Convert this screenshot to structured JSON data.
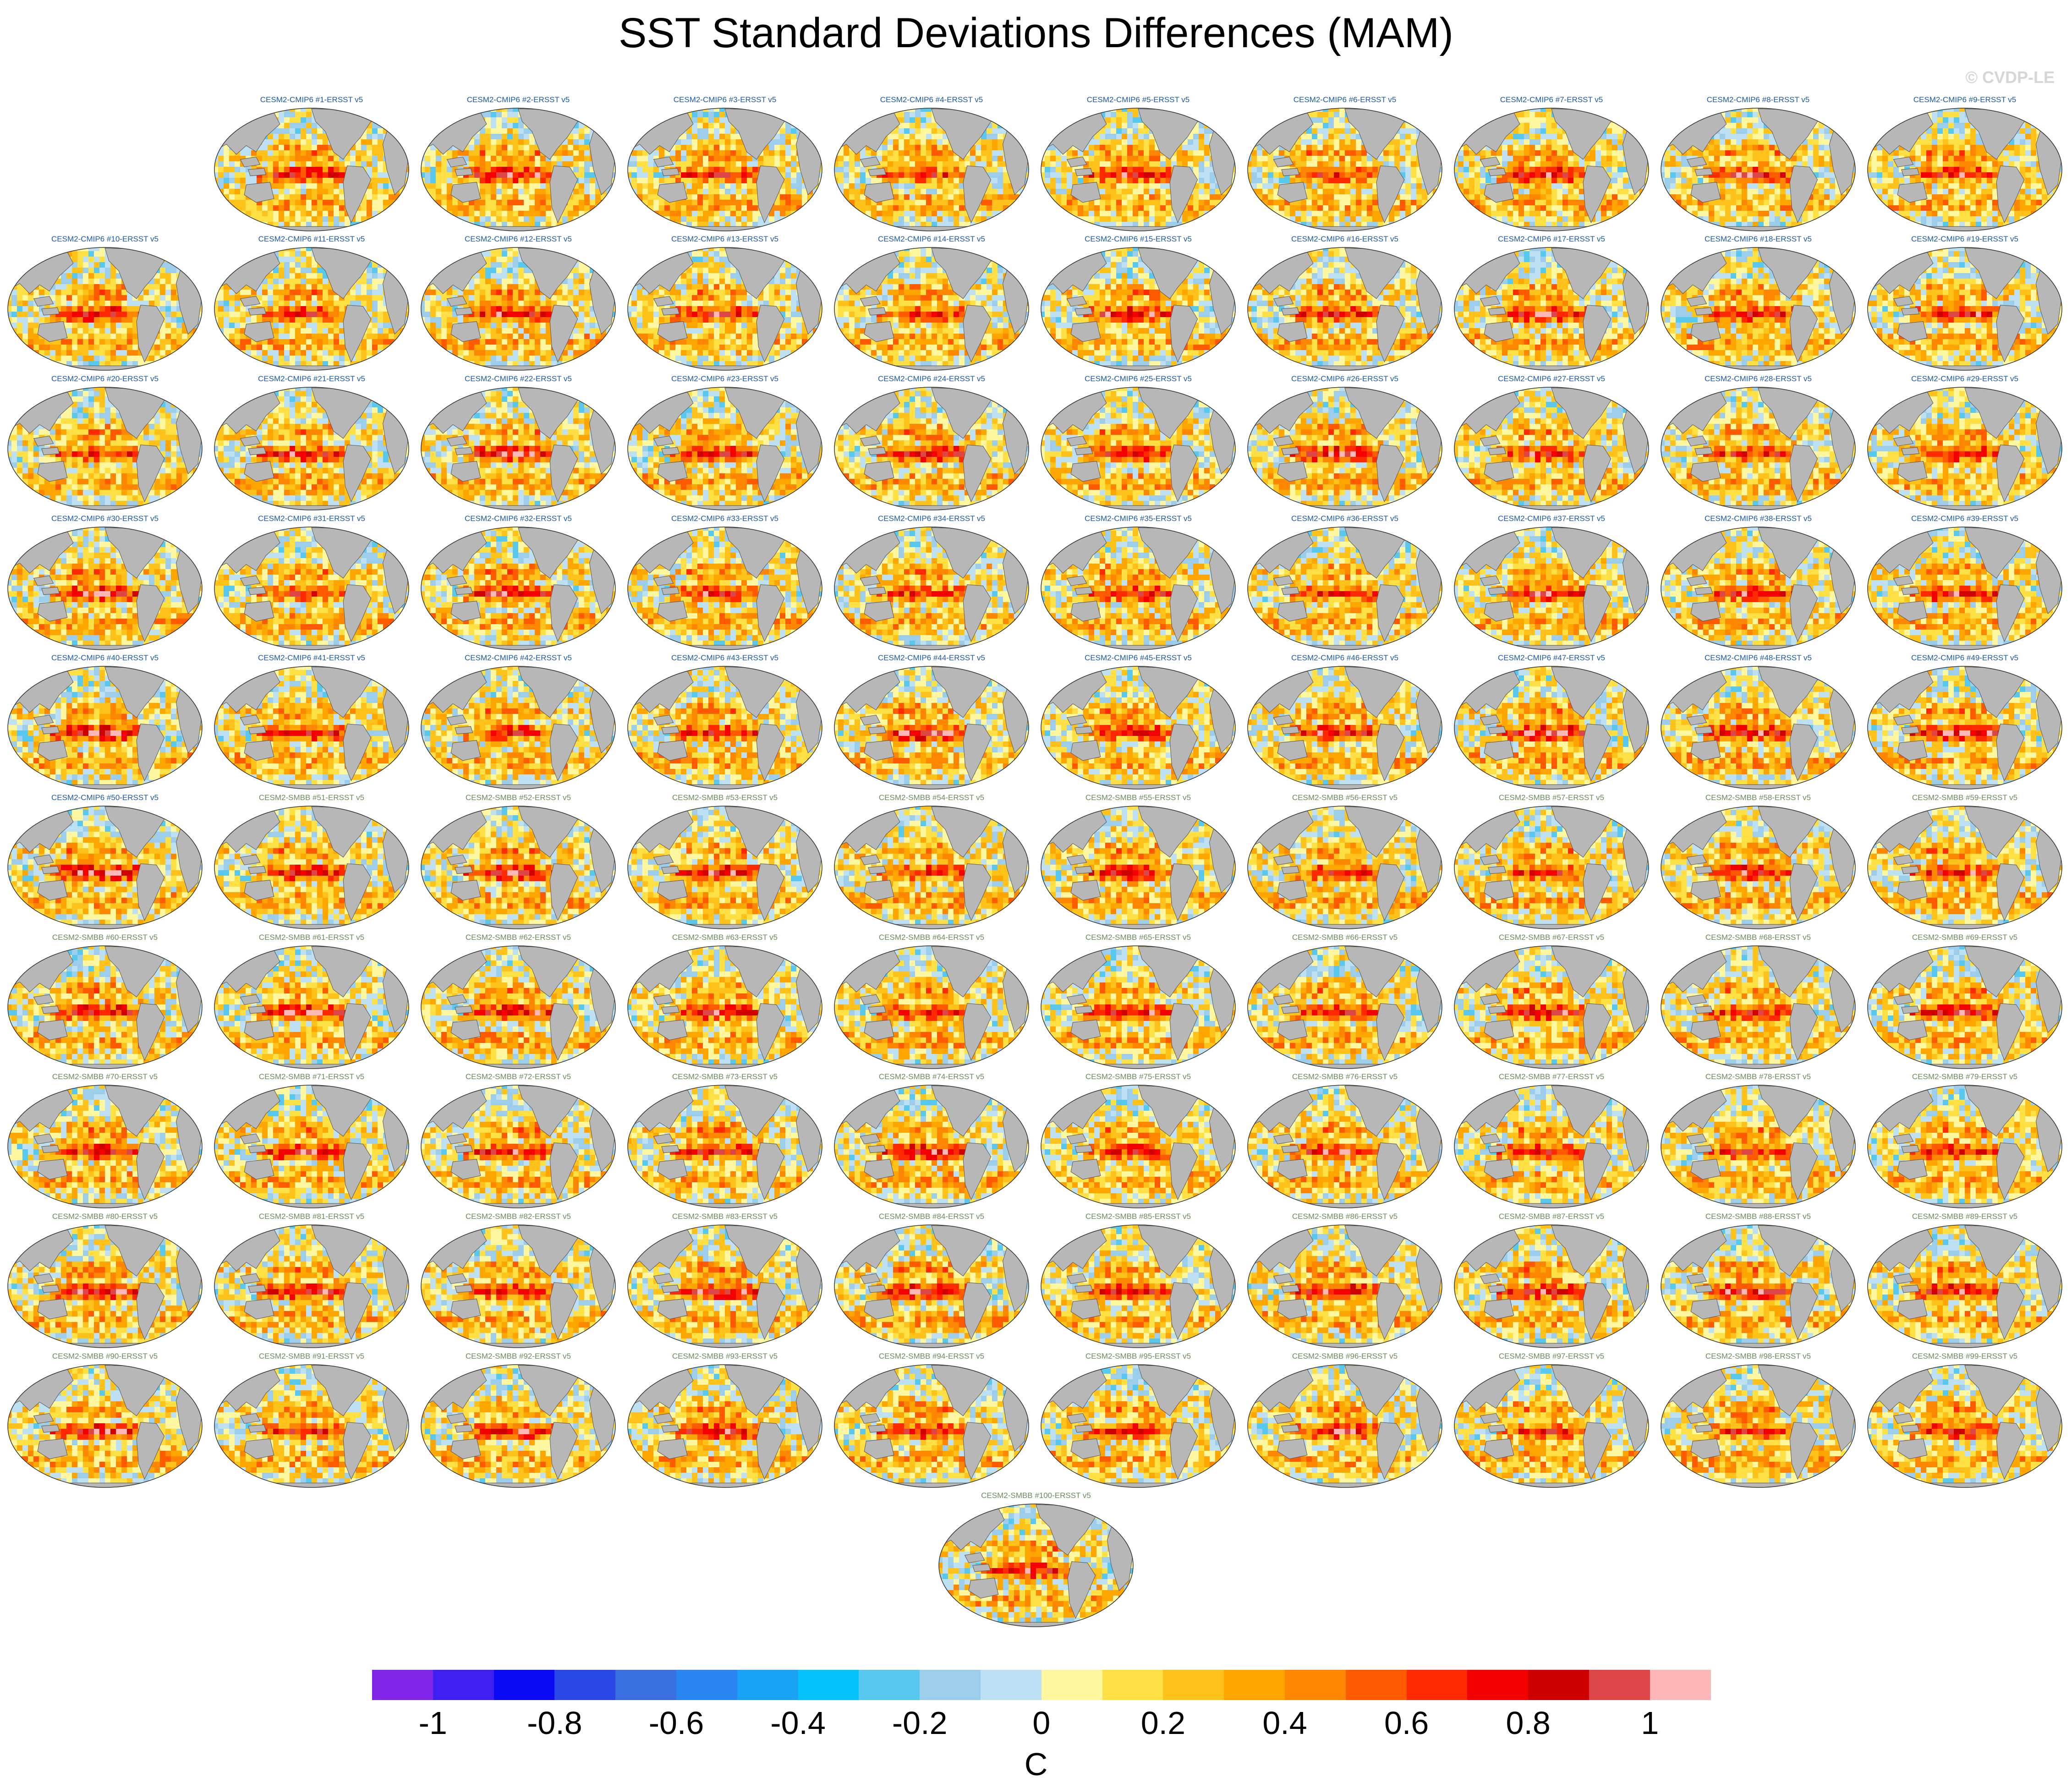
{
  "title": "SST Standard Deviations Differences (MAM)",
  "copyright": "© CVDP-LE",
  "chart_data": {
    "type": "heatmap",
    "title": "SST Standard Deviations Differences (MAM)",
    "layout": "small multiples of global map panels (9 panels in first row, 10 per row after, 1 centered final panel)",
    "colorbar": {
      "units": "C",
      "tick_labels": [
        "-1",
        "-0.8",
        "-0.6",
        "-0.4",
        "-0.2",
        "0",
        "0.2",
        "0.4",
        "0.6",
        "0.8",
        "1"
      ],
      "tick_values": [
        -1,
        -0.8,
        -0.6,
        -0.4,
        -0.2,
        0,
        0.2,
        0.4,
        0.6,
        0.8,
        1
      ],
      "range": [
        -1.1,
        1.1
      ],
      "interval": 0.1,
      "colors": [
        "#7f26e8",
        "#3e1ef0",
        "#0a0af5",
        "#2a48e6",
        "#3a6fe0",
        "#2a86f2",
        "#1aa3f5",
        "#05c2f8",
        "#58c8ef",
        "#9ccdea",
        "#bde0f2",
        "#fff7a0",
        "#ffe044",
        "#ffc21a",
        "#ffa500",
        "#ff8600",
        "#ff5a00",
        "#ff2a00",
        "#f50000",
        "#cf0000",
        "#dc4646",
        "#ffb6b6"
      ]
    },
    "panels": [
      {
        "label": "CESM2-CMIP6 #1-ERSST v5",
        "group": "CESM2-CMIP6",
        "member": 1,
        "tropical_peak": 0.75
      },
      {
        "label": "CESM2-CMIP6 #2-ERSST v5",
        "group": "CESM2-CMIP6",
        "member": 2,
        "tropical_peak": 0.85
      },
      {
        "label": "CESM2-CMIP6 #3-ERSST v5",
        "group": "CESM2-CMIP6",
        "member": 3,
        "tropical_peak": 0.7
      },
      {
        "label": "CESM2-CMIP6 #4-ERSST v5",
        "group": "CESM2-CMIP6",
        "member": 4,
        "tropical_peak": 0.65
      },
      {
        "label": "CESM2-CMIP6 #5-ERSST v5",
        "group": "CESM2-CMIP6",
        "member": 5,
        "tropical_peak": 0.8
      },
      {
        "label": "CESM2-CMIP6 #6-ERSST v5",
        "group": "CESM2-CMIP6",
        "member": 6,
        "tropical_peak": 0.7
      },
      {
        "label": "CESM2-CMIP6 #7-ERSST v5",
        "group": "CESM2-CMIP6",
        "member": 7,
        "tropical_peak": 0.85
      },
      {
        "label": "CESM2-CMIP6 #8-ERSST v5",
        "group": "CESM2-CMIP6",
        "member": 8,
        "tropical_peak": 0.8
      },
      {
        "label": "CESM2-CMIP6 #9-ERSST v5",
        "group": "CESM2-CMIP6",
        "member": 9,
        "tropical_peak": 0.75
      },
      {
        "label": "CESM2-CMIP6 #10-ERSST v5",
        "group": "CESM2-CMIP6",
        "member": 10,
        "tropical_peak": 0.85
      },
      {
        "label": "CESM2-CMIP6 #11-ERSST v5",
        "group": "CESM2-CMIP6",
        "member": 11,
        "tropical_peak": 0.7
      },
      {
        "label": "CESM2-CMIP6 #12-ERSST v5",
        "group": "CESM2-CMIP6",
        "member": 12,
        "tropical_peak": 0.8
      },
      {
        "label": "CESM2-CMIP6 #13-ERSST v5",
        "group": "CESM2-CMIP6",
        "member": 13,
        "tropical_peak": 0.75
      },
      {
        "label": "CESM2-CMIP6 #14-ERSST v5",
        "group": "CESM2-CMIP6",
        "member": 14,
        "tropical_peak": 0.65
      },
      {
        "label": "CESM2-CMIP6 #15-ERSST v5",
        "group": "CESM2-CMIP6",
        "member": 15,
        "tropical_peak": 0.85
      },
      {
        "label": "CESM2-CMIP6 #16-ERSST v5",
        "group": "CESM2-CMIP6",
        "member": 16,
        "tropical_peak": 0.7
      },
      {
        "label": "CESM2-CMIP6 #17-ERSST v5",
        "group": "CESM2-CMIP6",
        "member": 17,
        "tropical_peak": 0.8
      },
      {
        "label": "CESM2-CMIP6 #18-ERSST v5",
        "group": "CESM2-CMIP6",
        "member": 18,
        "tropical_peak": 0.75
      },
      {
        "label": "CESM2-CMIP6 #19-ERSST v5",
        "group": "CESM2-CMIP6",
        "member": 19,
        "tropical_peak": 0.8
      },
      {
        "label": "CESM2-CMIP6 #20-ERSST v5",
        "group": "CESM2-CMIP6",
        "member": 20,
        "tropical_peak": 0.7
      },
      {
        "label": "CESM2-CMIP6 #21-ERSST v5",
        "group": "CESM2-CMIP6",
        "member": 21,
        "tropical_peak": 0.75
      },
      {
        "label": "CESM2-CMIP6 #22-ERSST v5",
        "group": "CESM2-CMIP6",
        "member": 22,
        "tropical_peak": 0.85
      },
      {
        "label": "CESM2-CMIP6 #23-ERSST v5",
        "group": "CESM2-CMIP6",
        "member": 23,
        "tropical_peak": 0.8
      },
      {
        "label": "CESM2-CMIP6 #24-ERSST v5",
        "group": "CESM2-CMIP6",
        "member": 24,
        "tropical_peak": 0.85
      },
      {
        "label": "CESM2-CMIP6 #25-ERSST v5",
        "group": "CESM2-CMIP6",
        "member": 25,
        "tropical_peak": 0.8
      },
      {
        "label": "CESM2-CMIP6 #26-ERSST v5",
        "group": "CESM2-CMIP6",
        "member": 26,
        "tropical_peak": 0.85
      },
      {
        "label": "CESM2-CMIP6 #27-ERSST v5",
        "group": "CESM2-CMIP6",
        "member": 27,
        "tropical_peak": 0.75
      },
      {
        "label": "CESM2-CMIP6 #28-ERSST v5",
        "group": "CESM2-CMIP6",
        "member": 28,
        "tropical_peak": 0.7
      },
      {
        "label": "CESM2-CMIP6 #29-ERSST v5",
        "group": "CESM2-CMIP6",
        "member": 29,
        "tropical_peak": 0.75
      },
      {
        "label": "CESM2-CMIP6 #30-ERSST v5",
        "group": "CESM2-CMIP6",
        "member": 30,
        "tropical_peak": 0.8
      },
      {
        "label": "CESM2-CMIP6 #31-ERSST v5",
        "group": "CESM2-CMIP6",
        "member": 31,
        "tropical_peak": 0.7
      },
      {
        "label": "CESM2-CMIP6 #32-ERSST v5",
        "group": "CESM2-CMIP6",
        "member": 32,
        "tropical_peak": 0.85
      },
      {
        "label": "CESM2-CMIP6 #33-ERSST v5",
        "group": "CESM2-CMIP6",
        "member": 33,
        "tropical_peak": 0.75
      },
      {
        "label": "CESM2-CMIP6 #34-ERSST v5",
        "group": "CESM2-CMIP6",
        "member": 34,
        "tropical_peak": 0.65
      },
      {
        "label": "CESM2-CMIP6 #35-ERSST v5",
        "group": "CESM2-CMIP6",
        "member": 35,
        "tropical_peak": 0.75
      },
      {
        "label": "CESM2-CMIP6 #36-ERSST v5",
        "group": "CESM2-CMIP6",
        "member": 36,
        "tropical_peak": 0.7
      },
      {
        "label": "CESM2-CMIP6 #37-ERSST v5",
        "group": "CESM2-CMIP6",
        "member": 37,
        "tropical_peak": 0.85
      },
      {
        "label": "CESM2-CMIP6 #38-ERSST v5",
        "group": "CESM2-CMIP6",
        "member": 38,
        "tropical_peak": 0.75
      },
      {
        "label": "CESM2-CMIP6 #39-ERSST v5",
        "group": "CESM2-CMIP6",
        "member": 39,
        "tropical_peak": 0.8
      },
      {
        "label": "CESM2-CMIP6 #40-ERSST v5",
        "group": "CESM2-CMIP6",
        "member": 40,
        "tropical_peak": 0.9
      },
      {
        "label": "CESM2-CMIP6 #41-ERSST v5",
        "group": "CESM2-CMIP6",
        "member": 41,
        "tropical_peak": 0.75
      },
      {
        "label": "CESM2-CMIP6 #42-ERSST v5",
        "group": "CESM2-CMIP6",
        "member": 42,
        "tropical_peak": 0.7
      },
      {
        "label": "CESM2-CMIP6 #43-ERSST v5",
        "group": "CESM2-CMIP6",
        "member": 43,
        "tropical_peak": 0.8
      },
      {
        "label": "CESM2-CMIP6 #44-ERSST v5",
        "group": "CESM2-CMIP6",
        "member": 44,
        "tropical_peak": 0.95
      },
      {
        "label": "CESM2-CMIP6 #45-ERSST v5",
        "group": "CESM2-CMIP6",
        "member": 45,
        "tropical_peak": 0.75
      },
      {
        "label": "CESM2-CMIP6 #46-ERSST v5",
        "group": "CESM2-CMIP6",
        "member": 46,
        "tropical_peak": 0.8
      },
      {
        "label": "CESM2-CMIP6 #47-ERSST v5",
        "group": "CESM2-CMIP6",
        "member": 47,
        "tropical_peak": 0.9
      },
      {
        "label": "CESM2-CMIP6 #48-ERSST v5",
        "group": "CESM2-CMIP6",
        "member": 48,
        "tropical_peak": 0.85
      },
      {
        "label": "CESM2-CMIP6 #49-ERSST v5",
        "group": "CESM2-CMIP6",
        "member": 49,
        "tropical_peak": 0.9
      },
      {
        "label": "CESM2-CMIP6 #50-ERSST v5",
        "group": "CESM2-CMIP6",
        "member": 50,
        "tropical_peak": 0.95
      },
      {
        "label": "CESM2-SMBB #51-ERSST v5",
        "group": "CESM2-SMBB",
        "member": 51,
        "tropical_peak": 0.75
      },
      {
        "label": "CESM2-SMBB #52-ERSST v5",
        "group": "CESM2-SMBB",
        "member": 52,
        "tropical_peak": 0.8
      },
      {
        "label": "CESM2-SMBB #53-ERSST v5",
        "group": "CESM2-SMBB",
        "member": 53,
        "tropical_peak": 0.85
      },
      {
        "label": "CESM2-SMBB #54-ERSST v5",
        "group": "CESM2-SMBB",
        "member": 54,
        "tropical_peak": 0.65
      },
      {
        "label": "CESM2-SMBB #55-ERSST v5",
        "group": "CESM2-SMBB",
        "member": 55,
        "tropical_peak": 0.75
      },
      {
        "label": "CESM2-SMBB #56-ERSST v5",
        "group": "CESM2-SMBB",
        "member": 56,
        "tropical_peak": 0.7
      },
      {
        "label": "CESM2-SMBB #57-ERSST v5",
        "group": "CESM2-SMBB",
        "member": 57,
        "tropical_peak": 0.7
      },
      {
        "label": "CESM2-SMBB #58-ERSST v5",
        "group": "CESM2-SMBB",
        "member": 58,
        "tropical_peak": 0.8
      },
      {
        "label": "CESM2-SMBB #59-ERSST v5",
        "group": "CESM2-SMBB",
        "member": 59,
        "tropical_peak": 0.75
      },
      {
        "label": "CESM2-SMBB #60-ERSST v5",
        "group": "CESM2-SMBB",
        "member": 60,
        "tropical_peak": 0.85
      },
      {
        "label": "CESM2-SMBB #61-ERSST v5",
        "group": "CESM2-SMBB",
        "member": 61,
        "tropical_peak": 0.9
      },
      {
        "label": "CESM2-SMBB #62-ERSST v5",
        "group": "CESM2-SMBB",
        "member": 62,
        "tropical_peak": 0.8
      },
      {
        "label": "CESM2-SMBB #63-ERSST v5",
        "group": "CESM2-SMBB",
        "member": 63,
        "tropical_peak": 0.75
      },
      {
        "label": "CESM2-SMBB #64-ERSST v5",
        "group": "CESM2-SMBB",
        "member": 64,
        "tropical_peak": 0.7
      },
      {
        "label": "CESM2-SMBB #65-ERSST v5",
        "group": "CESM2-SMBB",
        "member": 65,
        "tropical_peak": 0.75
      },
      {
        "label": "CESM2-SMBB #66-ERSST v5",
        "group": "CESM2-SMBB",
        "member": 66,
        "tropical_peak": 0.7
      },
      {
        "label": "CESM2-SMBB #67-ERSST v5",
        "group": "CESM2-SMBB",
        "member": 67,
        "tropical_peak": 0.85
      },
      {
        "label": "CESM2-SMBB #68-ERSST v5",
        "group": "CESM2-SMBB",
        "member": 68,
        "tropical_peak": 0.75
      },
      {
        "label": "CESM2-SMBB #69-ERSST v5",
        "group": "CESM2-SMBB",
        "member": 69,
        "tropical_peak": 0.8
      },
      {
        "label": "CESM2-SMBB #70-ERSST v5",
        "group": "CESM2-SMBB",
        "member": 70,
        "tropical_peak": 0.8
      },
      {
        "label": "CESM2-SMBB #71-ERSST v5",
        "group": "CESM2-SMBB",
        "member": 71,
        "tropical_peak": 0.85
      },
      {
        "label": "CESM2-SMBB #72-ERSST v5",
        "group": "CESM2-SMBB",
        "member": 72,
        "tropical_peak": 0.75
      },
      {
        "label": "CESM2-SMBB #73-ERSST v5",
        "group": "CESM2-SMBB",
        "member": 73,
        "tropical_peak": 0.75
      },
      {
        "label": "CESM2-SMBB #74-ERSST v5",
        "group": "CESM2-SMBB",
        "member": 74,
        "tropical_peak": 0.85
      },
      {
        "label": "CESM2-SMBB #75-ERSST v5",
        "group": "CESM2-SMBB",
        "member": 75,
        "tropical_peak": 0.7
      },
      {
        "label": "CESM2-SMBB #76-ERSST v5",
        "group": "CESM2-SMBB",
        "member": 76,
        "tropical_peak": 0.75
      },
      {
        "label": "CESM2-SMBB #77-ERSST v5",
        "group": "CESM2-SMBB",
        "member": 77,
        "tropical_peak": 0.8
      },
      {
        "label": "CESM2-SMBB #78-ERSST v5",
        "group": "CESM2-SMBB",
        "member": 78,
        "tropical_peak": 0.7
      },
      {
        "label": "CESM2-SMBB #79-ERSST v5",
        "group": "CESM2-SMBB",
        "member": 79,
        "tropical_peak": 0.75
      },
      {
        "label": "CESM2-SMBB #80-ERSST v5",
        "group": "CESM2-SMBB",
        "member": 80,
        "tropical_peak": 0.85
      },
      {
        "label": "CESM2-SMBB #81-ERSST v5",
        "group": "CESM2-SMBB",
        "member": 81,
        "tropical_peak": 0.8
      },
      {
        "label": "CESM2-SMBB #82-ERSST v5",
        "group": "CESM2-SMBB",
        "member": 82,
        "tropical_peak": 0.75
      },
      {
        "label": "CESM2-SMBB #83-ERSST v5",
        "group": "CESM2-SMBB",
        "member": 83,
        "tropical_peak": 0.85
      },
      {
        "label": "CESM2-SMBB #84-ERSST v5",
        "group": "CESM2-SMBB",
        "member": 84,
        "tropical_peak": 0.85
      },
      {
        "label": "CESM2-SMBB #85-ERSST v5",
        "group": "CESM2-SMBB",
        "member": 85,
        "tropical_peak": 0.8
      },
      {
        "label": "CESM2-SMBB #86-ERSST v5",
        "group": "CESM2-SMBB",
        "member": 86,
        "tropical_peak": 0.8
      },
      {
        "label": "CESM2-SMBB #87-ERSST v5",
        "group": "CESM2-SMBB",
        "member": 87,
        "tropical_peak": 0.8
      },
      {
        "label": "CESM2-SMBB #88-ERSST v5",
        "group": "CESM2-SMBB",
        "member": 88,
        "tropical_peak": 0.85
      },
      {
        "label": "CESM2-SMBB #89-ERSST v5",
        "group": "CESM2-SMBB",
        "member": 89,
        "tropical_peak": 0.8
      },
      {
        "label": "CESM2-SMBB #90-ERSST v5",
        "group": "CESM2-SMBB",
        "member": 90,
        "tropical_peak": 0.85
      },
      {
        "label": "CESM2-SMBB #91-ERSST v5",
        "group": "CESM2-SMBB",
        "member": 91,
        "tropical_peak": 0.7
      },
      {
        "label": "CESM2-SMBB #92-ERSST v5",
        "group": "CESM2-SMBB",
        "member": 92,
        "tropical_peak": 0.8
      },
      {
        "label": "CESM2-SMBB #93-ERSST v5",
        "group": "CESM2-SMBB",
        "member": 93,
        "tropical_peak": 0.85
      },
      {
        "label": "CESM2-SMBB #94-ERSST v5",
        "group": "CESM2-SMBB",
        "member": 94,
        "tropical_peak": 0.75
      },
      {
        "label": "CESM2-SMBB #95-ERSST v5",
        "group": "CESM2-SMBB",
        "member": 95,
        "tropical_peak": 0.7
      },
      {
        "label": "CESM2-SMBB #96-ERSST v5",
        "group": "CESM2-SMBB",
        "member": 96,
        "tropical_peak": 0.75
      },
      {
        "label": "CESM2-SMBB #97-ERSST v5",
        "group": "CESM2-SMBB",
        "member": 97,
        "tropical_peak": 0.7
      },
      {
        "label": "CESM2-SMBB #98-ERSST v5",
        "group": "CESM2-SMBB",
        "member": 98,
        "tropical_peak": 0.7
      },
      {
        "label": "CESM2-SMBB #99-ERSST v5",
        "group": "CESM2-SMBB",
        "member": 99,
        "tropical_peak": 0.75
      },
      {
        "label": "CESM2-SMBB #100-ERSST v5",
        "group": "CESM2-SMBB",
        "member": 100,
        "tropical_peak": 0.8
      }
    ]
  }
}
